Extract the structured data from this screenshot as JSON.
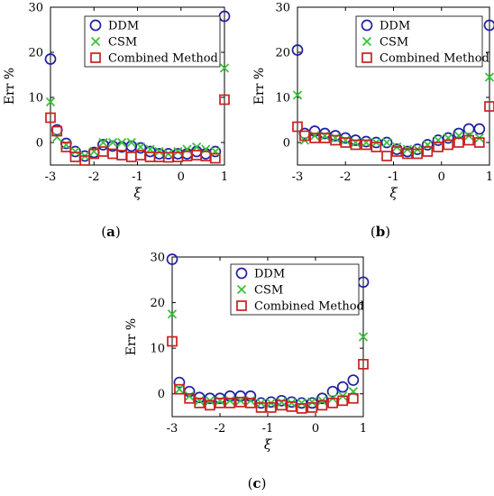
{
  "chart_data": [
    {
      "type": "scatter",
      "panel_label": "(a)",
      "xlabel": "ξ",
      "ylabel": "Err %",
      "xlim": [
        -3,
        1
      ],
      "ylim": [
        -5,
        30
      ],
      "xticks": [
        "-3",
        "-2",
        "-1",
        "0",
        "1"
      ],
      "yticks": [
        "0",
        "10",
        "20",
        "30"
      ],
      "legend_position": "top-right",
      "series": [
        {
          "name": "DDM",
          "marker": "circle",
          "color": "#1f1fa0",
          "x": [
            -3,
            -2.85,
            -2.64,
            -2.43,
            -2.21,
            -2,
            -1.79,
            -1.57,
            -1.36,
            -1.14,
            -0.93,
            -0.71,
            -0.5,
            -0.29,
            -0.07,
            0.14,
            0.36,
            0.57,
            0.79,
            1
          ],
          "y": [
            18.5,
            2.8,
            -0.2,
            -2,
            -3,
            -2.2,
            -0.5,
            -0.8,
            -1,
            -0.8,
            -1.2,
            -2,
            -2.5,
            -2.5,
            -2.5,
            -2.5,
            -2,
            -2.5,
            -2,
            28
          ]
        },
        {
          "name": "CSM",
          "marker": "x",
          "color": "#3ac23a",
          "x": [
            -3,
            -2.85,
            -2.64,
            -2.43,
            -2.21,
            -2,
            -1.79,
            -1.57,
            -1.36,
            -1.14,
            -0.93,
            -0.71,
            -0.5,
            -0.29,
            -0.07,
            0.14,
            0.36,
            0.57,
            0.79,
            1
          ],
          "y": [
            9,
            1.2,
            -0.5,
            -2,
            -3,
            -2,
            0,
            0,
            0,
            0,
            -1,
            -1.5,
            -2,
            -2.5,
            -2,
            -1.5,
            -1,
            -1.5,
            -2,
            16.5
          ]
        },
        {
          "name": "Combined Method",
          "marker": "square",
          "color": "#c82020",
          "x": [
            -3,
            -2.85,
            -2.64,
            -2.43,
            -2.21,
            -2,
            -1.79,
            -1.57,
            -1.36,
            -1.14,
            -0.93,
            -0.71,
            -0.5,
            -0.29,
            -0.07,
            0.14,
            0.36,
            0.57,
            0.79,
            1
          ],
          "y": [
            5.5,
            2.5,
            -1,
            -3.2,
            -4,
            -2.5,
            -2,
            -2.5,
            -2.8,
            -3.2,
            -2.8,
            -3.2,
            -3.2,
            -3.3,
            -3.2,
            -3,
            -2.8,
            -3,
            -3.5,
            9.5
          ]
        }
      ]
    },
    {
      "type": "scatter",
      "panel_label": "(b)",
      "xlabel": "ξ",
      "ylabel": "Err %",
      "xlim": [
        -3,
        1
      ],
      "ylim": [
        -5,
        30
      ],
      "xticks": [
        "-3",
        "-2",
        "-1",
        "0",
        "1"
      ],
      "yticks": [
        "0",
        "10",
        "20",
        "30"
      ],
      "legend_position": "top-right",
      "series": [
        {
          "name": "DDM",
          "marker": "circle",
          "color": "#1f1fa0",
          "x": [
            -3,
            -2.85,
            -2.64,
            -2.43,
            -2.21,
            -2,
            -1.79,
            -1.57,
            -1.36,
            -1.14,
            -0.93,
            -0.71,
            -0.5,
            -0.29,
            -0.07,
            0.14,
            0.36,
            0.57,
            0.79,
            1
          ],
          "y": [
            20.5,
            2,
            2.5,
            2,
            1.5,
            1,
            0.5,
            0.2,
            0,
            0,
            -1.5,
            -2,
            -1.5,
            -0.5,
            0.5,
            1,
            2,
            3,
            3,
            26
          ]
        },
        {
          "name": "CSM",
          "marker": "x",
          "color": "#3ac23a",
          "x": [
            -3,
            -2.85,
            -2.64,
            -2.43,
            -2.21,
            -2,
            -1.79,
            -1.57,
            -1.36,
            -1.14,
            -0.93,
            -0.71,
            -0.5,
            -0.29,
            -0.07,
            0.14,
            0.36,
            0.57,
            0.79,
            1
          ],
          "y": [
            10.5,
            0.5,
            1.5,
            1.5,
            1,
            0.5,
            0,
            0,
            0,
            0,
            -1,
            -1.5,
            -1.5,
            -0.5,
            0.5,
            1,
            1.5,
            1.5,
            1,
            14.5
          ]
        },
        {
          "name": "Combined Method",
          "marker": "square",
          "color": "#c82020",
          "x": [
            -3,
            -2.85,
            -2.64,
            -2.43,
            -2.21,
            -2,
            -1.79,
            -1.57,
            -1.36,
            -1.14,
            -0.93,
            -0.71,
            -0.5,
            -0.29,
            -0.07,
            0.14,
            0.36,
            0.57,
            0.79,
            1
          ],
          "y": [
            3.5,
            1.5,
            1,
            1,
            0.5,
            0,
            -0.5,
            -0.5,
            -1,
            -3,
            -2,
            -2.5,
            -2.5,
            -2,
            -1,
            -0.5,
            0,
            0.5,
            0,
            8
          ]
        }
      ]
    },
    {
      "type": "scatter",
      "panel_label": "(c)",
      "xlabel": "ξ",
      "ylabel": "Err %",
      "xlim": [
        -3,
        1
      ],
      "ylim": [
        -5,
        30
      ],
      "xticks": [
        "-3",
        "-2",
        "-1",
        "0",
        "1"
      ],
      "yticks": [
        "0",
        "10",
        "20",
        "30"
      ],
      "legend_position": "top-right",
      "series": [
        {
          "name": "DDM",
          "marker": "circle",
          "color": "#1f1fa0",
          "x": [
            -3,
            -2.85,
            -2.64,
            -2.43,
            -2.21,
            -2,
            -1.79,
            -1.57,
            -1.36,
            -1.14,
            -0.93,
            -0.71,
            -0.5,
            -0.29,
            -0.07,
            0.14,
            0.36,
            0.57,
            0.79,
            1
          ],
          "y": [
            29.5,
            2.5,
            0.5,
            -0.8,
            -1,
            -1,
            -0.5,
            -0.5,
            -0.5,
            -2,
            -1.8,
            -1.5,
            -1.8,
            -2,
            -2,
            -1,
            0.5,
            1.5,
            3,
            24.5
          ]
        },
        {
          "name": "CSM",
          "marker": "x",
          "color": "#3ac23a",
          "x": [
            -3,
            -2.85,
            -2.64,
            -2.43,
            -2.21,
            -2,
            -1.79,
            -1.57,
            -1.36,
            -1.14,
            -0.93,
            -0.71,
            -0.5,
            -0.29,
            -0.07,
            0.14,
            0.36,
            0.57,
            0.79,
            1
          ],
          "y": [
            17.5,
            1,
            -0.5,
            -1.5,
            -1.5,
            -1.5,
            -1.5,
            -1.5,
            -1.5,
            -2,
            -2,
            -1.8,
            -2,
            -2,
            -1.8,
            -1.5,
            -1,
            -0.5,
            0.5,
            12.5
          ]
        },
        {
          "name": "Combined Method",
          "marker": "square",
          "color": "#c82020",
          "x": [
            -3,
            -2.85,
            -2.64,
            -2.43,
            -2.21,
            -2,
            -1.79,
            -1.57,
            -1.36,
            -1.14,
            -0.93,
            -0.71,
            -0.5,
            -0.29,
            -0.07,
            0.14,
            0.36,
            0.57,
            0.79,
            1
          ],
          "y": [
            11.5,
            1,
            -1,
            -2,
            -2.5,
            -2,
            -2,
            -1.8,
            -2,
            -3,
            -3,
            -2.5,
            -2.8,
            -3.2,
            -3,
            -2.5,
            -2,
            -1.5,
            -1,
            6.5
          ]
        }
      ]
    }
  ]
}
